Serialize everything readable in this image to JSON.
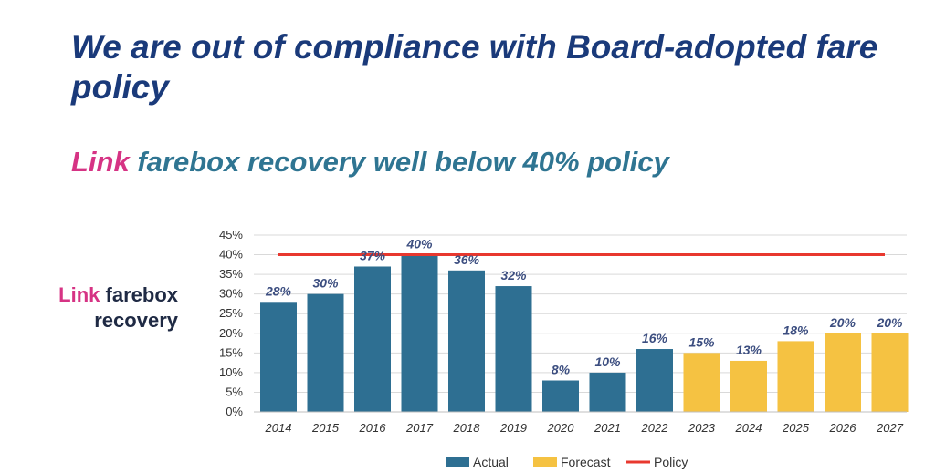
{
  "slide": {
    "title": "We are out of compliance with Board-adopted fare policy",
    "subtitle_accent": "Link",
    "subtitle_rest": " farebox recovery well below 40% policy",
    "side_label_accent": "Link",
    "side_label_line1_rest": " farebox",
    "side_label_line2": "recovery"
  },
  "colors": {
    "actual": "#2e6f92",
    "forecast": "#f5c242",
    "policy": "#e8382f",
    "gridline": "#d9d9d9"
  },
  "chart_data": {
    "type": "bar",
    "categories": [
      "2014",
      "2015",
      "2016",
      "2017",
      "2018",
      "2019",
      "2020",
      "2021",
      "2022",
      "2023",
      "2024",
      "2025",
      "2026",
      "2027"
    ],
    "values": [
      28,
      30,
      37,
      40,
      36,
      32,
      8,
      10,
      16,
      15,
      13,
      18,
      20,
      20
    ],
    "data_labels": [
      "28%",
      "30%",
      "37%",
      "40%",
      "36%",
      "32%",
      "8%",
      "10%",
      "16%",
      "15%",
      "13%",
      "18%",
      "20%",
      "20%"
    ],
    "bar_series": [
      "Actual",
      "Actual",
      "Actual",
      "Actual",
      "Actual",
      "Actual",
      "Actual",
      "Actual",
      "Actual",
      "Forecast",
      "Forecast",
      "Forecast",
      "Forecast",
      "Forecast"
    ],
    "series": [
      {
        "name": "Actual",
        "type": "bar"
      },
      {
        "name": "Forecast",
        "type": "bar"
      },
      {
        "name": "Policy",
        "type": "line",
        "value": 40
      }
    ],
    "y_ticks": [
      "0%",
      "5%",
      "10%",
      "15%",
      "20%",
      "25%",
      "30%",
      "35%",
      "40%",
      "45%"
    ],
    "ylim": [
      0,
      45
    ],
    "y_unit": "%",
    "grid": true,
    "legend": {
      "position": "bottom",
      "items": [
        "Actual",
        "Forecast",
        "Policy"
      ]
    }
  }
}
